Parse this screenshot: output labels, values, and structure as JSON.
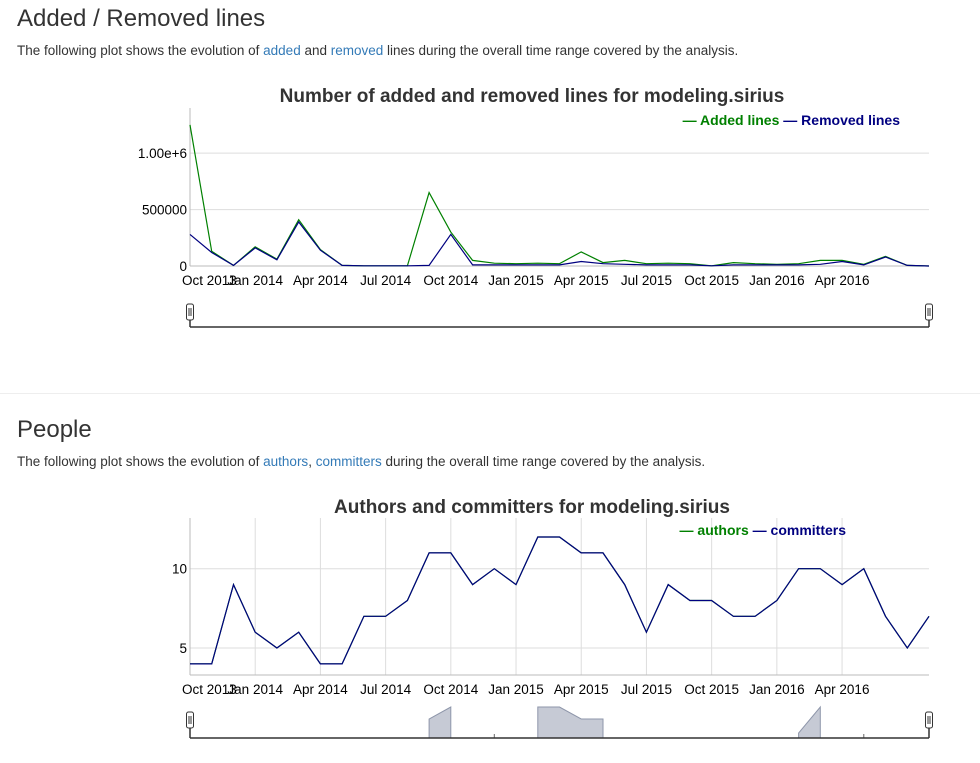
{
  "sections": {
    "lines": {
      "title": "Added / Removed lines",
      "desc_prefix": "The following plot shows the evolution of ",
      "link1": "added",
      "desc_mid": " and ",
      "link2": "removed",
      "desc_suffix": " lines during the overall time range covered by the analysis."
    },
    "people": {
      "title": "People",
      "desc_prefix": "The following plot shows the evolution of ",
      "link1": "authors",
      "desc_mid": ", ",
      "link2": "committers",
      "desc_suffix": " during the overall time range covered by the analysis."
    }
  },
  "colors": {
    "added": "#008000",
    "removed": "#000080",
    "grid": "#dddddd",
    "range_fill": "#c6cad5",
    "range_stroke": "#8e96aa"
  },
  "chart_data": [
    {
      "type": "line",
      "title": "Number of added and removed lines for modeling.sirius",
      "x_ticks": [
        "Oct 2013",
        "Jan 2014",
        "Apr 2014",
        "Jul 2014",
        "Oct 2014",
        "Jan 2015",
        "Apr 2015",
        "Jul 2015",
        "Oct 2015",
        "Jan 2016",
        "Apr 2016"
      ],
      "x": [
        "2013-09",
        "2013-10",
        "2013-11",
        "2013-12",
        "2014-01",
        "2014-02",
        "2014-03",
        "2014-04",
        "2014-05",
        "2014-06",
        "2014-07",
        "2014-08",
        "2014-09",
        "2014-10",
        "2014-11",
        "2014-12",
        "2015-01",
        "2015-02",
        "2015-03",
        "2015-04",
        "2015-05",
        "2015-06",
        "2015-07",
        "2015-08",
        "2015-09",
        "2015-10",
        "2015-11",
        "2015-12",
        "2016-01",
        "2016-02",
        "2016-03",
        "2016-04",
        "2016-05",
        "2016-06",
        "2016-07"
      ],
      "y_ticks": [
        "0",
        "500000",
        "1.00e+6"
      ],
      "ylim": [
        0,
        1400000
      ],
      "grid": true,
      "legend_position": "top-right",
      "series": [
        {
          "name": "Added lines",
          "color": "#008000",
          "values": [
            1250000,
            130000,
            5000,
            170000,
            60000,
            410000,
            145000,
            5000,
            2000,
            2000,
            2000,
            650000,
            300000,
            50000,
            25000,
            20000,
            25000,
            20000,
            125000,
            30000,
            50000,
            20000,
            25000,
            20000,
            2000,
            30000,
            20000,
            15000,
            20000,
            50000,
            50000,
            15000,
            85000,
            5000,
            0
          ]
        },
        {
          "name": "Removed lines",
          "color": "#000080",
          "values": [
            280000,
            120000,
            5000,
            160000,
            55000,
            390000,
            140000,
            5000,
            2000,
            2000,
            2000,
            5000,
            280000,
            10000,
            10000,
            10000,
            10000,
            10000,
            40000,
            20000,
            15000,
            10000,
            10000,
            10000,
            2000,
            10000,
            10000,
            10000,
            10000,
            15000,
            40000,
            10000,
            80000,
            5000,
            0
          ]
        }
      ]
    },
    {
      "type": "line",
      "title": "Authors and committers for modeling.sirius",
      "x_ticks": [
        "Oct 2013",
        "Jan 2014",
        "Apr 2014",
        "Jul 2014",
        "Oct 2014",
        "Jan 2015",
        "Apr 2015",
        "Jul 2015",
        "Oct 2015",
        "Jan 2016",
        "Apr 2016"
      ],
      "x": [
        "2013-09",
        "2013-10",
        "2013-11",
        "2013-12",
        "2014-01",
        "2014-02",
        "2014-03",
        "2014-04",
        "2014-05",
        "2014-06",
        "2014-07",
        "2014-08",
        "2014-09",
        "2014-10",
        "2014-11",
        "2014-12",
        "2015-01",
        "2015-02",
        "2015-03",
        "2015-04",
        "2015-05",
        "2015-06",
        "2015-07",
        "2015-08",
        "2015-09",
        "2015-10",
        "2015-11",
        "2015-12",
        "2016-01",
        "2016-02",
        "2016-03",
        "2016-04",
        "2016-05",
        "2016-06",
        "2016-07"
      ],
      "y_ticks": [
        "5",
        "10"
      ],
      "ylim": [
        3.3,
        13.2
      ],
      "grid": true,
      "legend_position": "top-right",
      "series": [
        {
          "name": "authors",
          "color": "#008000",
          "values": [
            4,
            4,
            9,
            6,
            5,
            6,
            4,
            4,
            7,
            7,
            8,
            11,
            11,
            9,
            10,
            9,
            12,
            12,
            11,
            11,
            9,
            6,
            9,
            8,
            8,
            7,
            7,
            8,
            10,
            10,
            9,
            10,
            7,
            5,
            7
          ]
        },
        {
          "name": "committers",
          "color": "#000080",
          "values": [
            4,
            4,
            9,
            6,
            5,
            6,
            4,
            4,
            7,
            7,
            8,
            11,
            11,
            9,
            10,
            9,
            12,
            12,
            11,
            11,
            9,
            6,
            9,
            8,
            8,
            7,
            7,
            8,
            10,
            10,
            9,
            10,
            7,
            5,
            7
          ]
        }
      ]
    }
  ]
}
